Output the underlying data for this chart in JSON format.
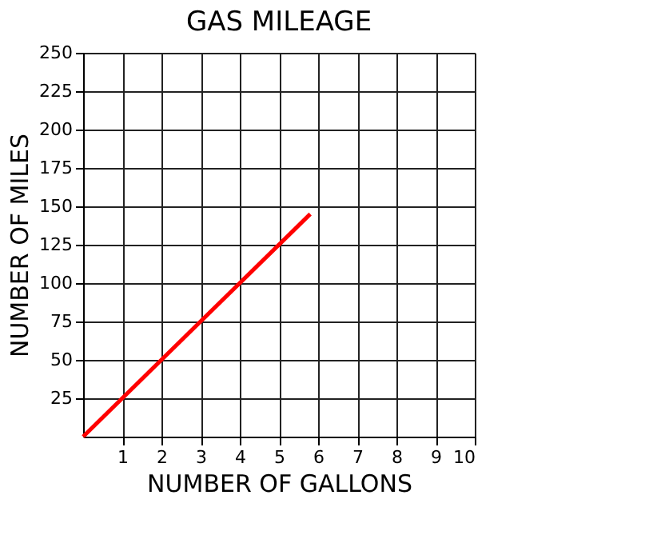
{
  "chart_data": {
    "type": "line",
    "title": "GAS MILEAGE",
    "xlabel": "NUMBER OF GALLONS",
    "ylabel": "NUMBER OF MILES",
    "x": [
      0,
      5.8
    ],
    "series": [
      {
        "color": "#ff0000",
        "values": [
          0,
          145
        ]
      }
    ],
    "xlim": [
      0,
      10
    ],
    "ylim": [
      0,
      250
    ],
    "xticks": [
      1,
      2,
      3,
      4,
      5,
      6,
      7,
      8,
      9,
      10
    ],
    "yticks": [
      25,
      50,
      75,
      100,
      125,
      150,
      175,
      200,
      225,
      250
    ],
    "grid": true,
    "marker": "none",
    "line_style": "solid"
  }
}
